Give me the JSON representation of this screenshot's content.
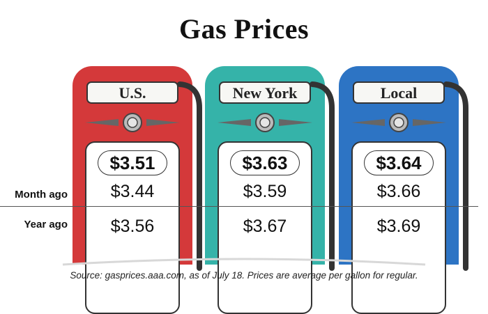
{
  "title": "Gas Prices",
  "row_labels": {
    "month_ago": "Month ago",
    "year_ago": "Year ago"
  },
  "pumps": [
    {
      "label": "U.S.",
      "current": "$3.51",
      "month_ago": "$3.44",
      "year_ago": "$3.56",
      "color": "#d4393a"
    },
    {
      "label": "New York",
      "current": "$3.63",
      "month_ago": "$3.59",
      "year_ago": "$3.67",
      "color": "#35b3a9"
    },
    {
      "label": "Local",
      "current": "$3.64",
      "month_ago": "$3.66",
      "year_ago": "$3.69",
      "color": "#2d74c4"
    }
  ],
  "source": "Source: gasprices.aaa.com, as of July 18. Prices are average per gallon for regular."
}
